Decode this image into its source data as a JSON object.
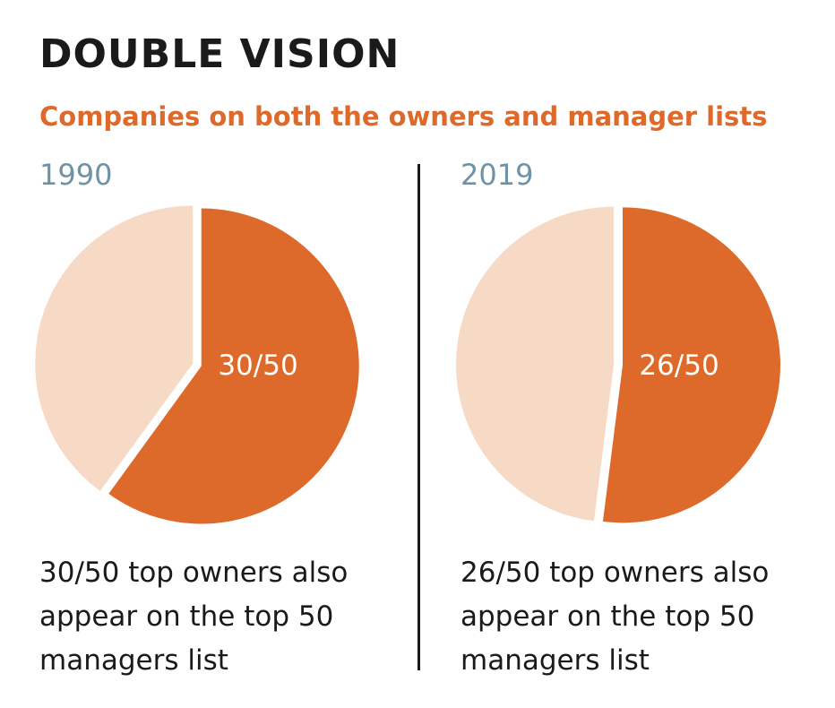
{
  "title": "DOUBLE VISION",
  "subtitle": "Companies on both the owners and manager lists",
  "colors": {
    "title": "#1a1a1a",
    "subtitle": "#dd6a2b",
    "year": "#6e93a6",
    "highlight_slice": "#dd6a2b",
    "rest_slice": "#f6dac6",
    "slice_label": "#ffffff",
    "divider": "#1a1a1a"
  },
  "chart_data": [
    {
      "type": "pie",
      "year": "1990",
      "total": 50,
      "slices": [
        {
          "value": 30,
          "label": "30/50",
          "color": "#dd6a2b"
        },
        {
          "value": 20,
          "label": "",
          "color": "#f6dac6"
        }
      ],
      "caption": "30/50 top owners also appear on the top 50 managers list"
    },
    {
      "type": "pie",
      "year": "2019",
      "total": 50,
      "slices": [
        {
          "value": 26,
          "label": "26/50",
          "color": "#dd6a2b"
        },
        {
          "value": 24,
          "label": "",
          "color": "#f6dac6"
        }
      ],
      "caption": "26/50 top owners also appear on the top 50 managers list"
    }
  ]
}
